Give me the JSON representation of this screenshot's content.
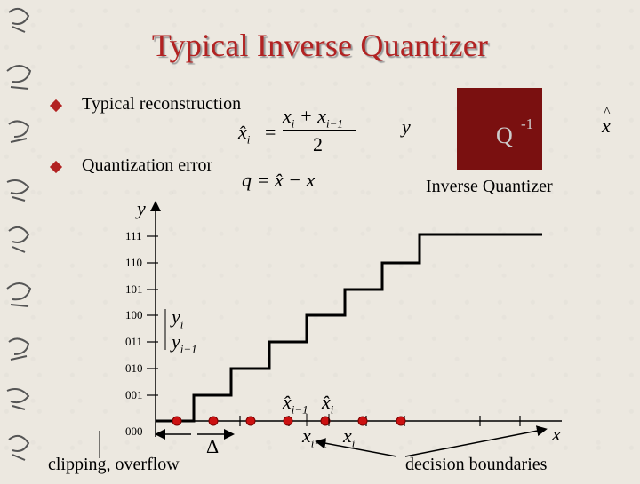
{
  "slide": {
    "title": "Typical Inverse Quantizer",
    "bullets": [
      {
        "text": "Typical reconstruction"
      },
      {
        "text": "Quantization error"
      }
    ]
  },
  "block_diagram": {
    "input": "y",
    "box_label": "Q",
    "box_superscript": "-1",
    "output_hat": "^",
    "output": "x",
    "caption": "Inverse Quantizer",
    "box_color": "#7a1010"
  },
  "formulas": {
    "recon_lhs": "x̂",
    "recon_sub": "i",
    "recon_numerator": "x",
    "recon_num_sub1": "i",
    "recon_plus": " + x",
    "recon_num_sub2": "i−1",
    "recon_den": "2",
    "error": "q = x̂ − x"
  },
  "staircase": {
    "y_axis_label": "y",
    "x_axis_label": "x",
    "levels": [
      "000",
      "001",
      "010",
      "011",
      "100",
      "101",
      "110",
      "111"
    ],
    "annotation_y_i": "y",
    "annotation_y_i_sub": "i",
    "annotation_y_im1": "y",
    "annotation_y_im1_sub": "i−1",
    "xhat_im1": "x̂",
    "xhat_im1_sub": "i−1",
    "xhat_i": "x̂",
    "xhat_i_sub": "i",
    "x_im1": "x",
    "x_im1_sub": "i−1",
    "x_i": "x",
    "x_i_sub": "i",
    "delta": "Δ",
    "clipping_label": "clipping, overflow",
    "boundaries_label": "decision boundaries",
    "dot_color": "#cc1111",
    "accent_color": "#b22222"
  }
}
